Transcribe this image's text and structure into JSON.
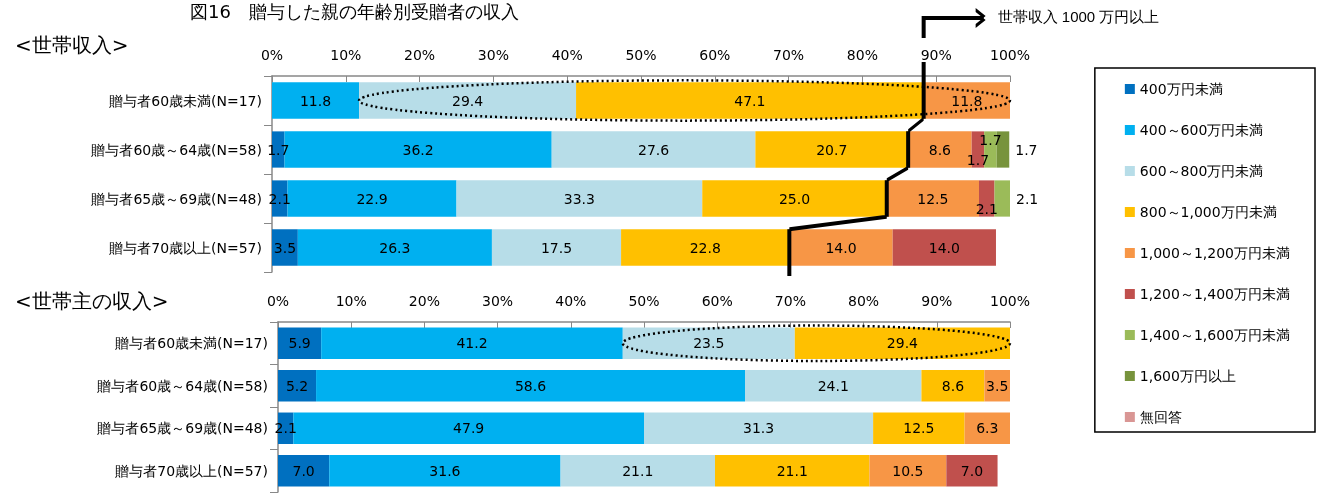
{
  "chart_data": [
    {
      "type": "bar",
      "orientation": "horizontal",
      "stacked": true,
      "title": "図16　贈与した親の年齢別受贈者の収入",
      "subtitle": "<世帯収入>",
      "categories": [
        "贈与者60歳未満(N=17)",
        "贈与者60歳～64歳(N=58)",
        "贈与者65歳～69歳(N=48)",
        "贈与者70歳以上(N=57)"
      ],
      "xlim": [
        0,
        100
      ],
      "xticks": [
        {
          "value": 0,
          "label": "0%"
        },
        {
          "value": 10,
          "label": "10%"
        },
        {
          "value": 20,
          "label": "20%"
        },
        {
          "value": 30,
          "label": "30%"
        },
        {
          "value": 40,
          "label": "40%"
        },
        {
          "value": 50,
          "label": "50%"
        },
        {
          "value": 60,
          "label": "60%"
        },
        {
          "value": 70,
          "label": "70%"
        },
        {
          "value": 80,
          "label": "80%"
        },
        {
          "value": 90,
          "label": "90%"
        },
        {
          "value": 100,
          "label": "100%"
        }
      ],
      "grid": false,
      "legend": "right",
      "annotations": [
        "世帯収入 1000 万円以上"
      ],
      "series": [
        {
          "name": "400万円未満",
          "color": "#0070c0",
          "values": [
            null,
            1.7,
            2.1,
            3.5
          ],
          "value_labels": [
            null,
            "1.7",
            "2.1",
            "3.5"
          ]
        },
        {
          "name": "400～600万円未満",
          "color": "#00b0f0",
          "values": [
            11.8,
            36.2,
            22.9,
            26.3
          ],
          "value_labels": [
            "11.8",
            "36.2",
            "22.9",
            "26.3"
          ]
        },
        {
          "name": "600～800万円未満",
          "color": "#b7dde8",
          "values": [
            29.4,
            27.6,
            33.3,
            17.5
          ],
          "value_labels": [
            "29.4",
            "27.6",
            "33.3",
            "17.5"
          ]
        },
        {
          "name": "800～1,000万円未満",
          "color": "#ffc000",
          "values": [
            47.1,
            20.7,
            25.0,
            22.8
          ],
          "value_labels": [
            "47.1",
            "20.7",
            "25.0",
            "22.8"
          ]
        },
        {
          "name": "1,000～1,200万円未満",
          "color": "#f79646",
          "values": [
            11.8,
            8.6,
            12.5,
            14.0
          ],
          "value_labels": [
            "11.8",
            "8.6",
            "12.5",
            "14.0"
          ]
        },
        {
          "name": "1,200～1,400万円未満",
          "color": "#c0504d",
          "values": [
            null,
            1.7,
            2.1,
            14.0
          ],
          "value_labels": [
            null,
            "1.7",
            "2.1",
            "14.0"
          ]
        },
        {
          "name": "1,400～1,600万円未満",
          "color": "#9bbb59",
          "values": [
            null,
            1.7,
            2.1,
            null
          ],
          "value_labels": [
            null,
            "1.7",
            "2.1",
            null
          ]
        },
        {
          "name": "1,600万円以上",
          "color": "#77933c",
          "values": [
            null,
            1.7,
            null,
            null
          ],
          "value_labels": [
            null,
            "1.7",
            null,
            null
          ]
        },
        {
          "name": "無回答",
          "color": "#d99694",
          "values": [
            null,
            null,
            null,
            null
          ]
        }
      ]
    },
    {
      "type": "bar",
      "orientation": "horizontal",
      "stacked": true,
      "title": "<世帯主の収入>",
      "categories": [
        "贈与者60歳未満(N=17)",
        "贈与者60歳～64歳(N=58)",
        "贈与者65歳～69歳(N=48)",
        "贈与者70歳以上(N=57)"
      ],
      "xlim": [
        0,
        100
      ],
      "xticks": [
        {
          "value": 0,
          "label": "0%"
        },
        {
          "value": 10,
          "label": "10%"
        },
        {
          "value": 20,
          "label": "20%"
        },
        {
          "value": 30,
          "label": "30%"
        },
        {
          "value": 40,
          "label": "40%"
        },
        {
          "value": 50,
          "label": "50%"
        },
        {
          "value": 60,
          "label": "60%"
        },
        {
          "value": 70,
          "label": "70%"
        },
        {
          "value": 80,
          "label": "80%"
        },
        {
          "value": 90,
          "label": "90%"
        },
        {
          "value": 100,
          "label": "100%"
        }
      ],
      "grid": false,
      "legend": false,
      "series": [
        {
          "color": "#0070c0",
          "values": [
            5.9,
            5.2,
            2.1,
            7.0
          ],
          "value_labels": [
            "5.9",
            "5.2",
            "2.1",
            "7.0"
          ]
        },
        {
          "color": "#00b0f0",
          "values": [
            41.2,
            58.6,
            47.9,
            31.6
          ],
          "value_labels": [
            "41.2",
            "58.6",
            "47.9",
            "31.6"
          ]
        },
        {
          "color": "#b7dde8",
          "values": [
            23.5,
            24.1,
            31.3,
            21.1
          ],
          "value_labels": [
            "23.5",
            "24.1",
            "31.3",
            "21.1"
          ]
        },
        {
          "color": "#ffc000",
          "values": [
            29.4,
            8.6,
            12.5,
            21.1
          ],
          "value_labels": [
            "29.4",
            "8.6",
            "12.5",
            "21.1"
          ]
        },
        {
          "color": "#f79646",
          "values": [
            null,
            3.5,
            6.3,
            10.5
          ],
          "value_labels": [
            null,
            "3.5",
            "6.3",
            "10.5"
          ]
        },
        {
          "color": "#c0504d",
          "values": [
            null,
            null,
            null,
            7.0
          ],
          "value_labels": [
            null,
            null,
            null,
            "7.0"
          ]
        }
      ]
    }
  ]
}
